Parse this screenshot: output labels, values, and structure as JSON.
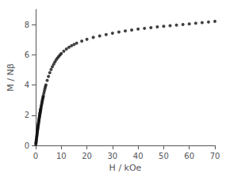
{
  "chart_data": {
    "type": "scatter",
    "title": "",
    "xlabel": "H / kOe",
    "ylabel": "M / Nβ",
    "xlim": [
      0,
      70
    ],
    "ylim": [
      0,
      9
    ],
    "xticks": [
      0,
      10,
      20,
      30,
      40,
      50,
      60,
      70
    ],
    "yticks": [
      0,
      2,
      4,
      6,
      8
    ],
    "color": "#111111",
    "grid": false,
    "x": [
      0.05,
      0.1,
      0.15,
      0.2,
      0.25,
      0.3,
      0.35,
      0.4,
      0.45,
      0.5,
      0.55,
      0.6,
      0.65,
      0.7,
      0.75,
      0.8,
      0.85,
      0.9,
      0.95,
      1.0,
      1.05,
      1.1,
      1.15,
      1.2,
      1.25,
      1.3,
      1.35,
      1.4,
      1.45,
      1.5,
      1.55,
      1.6,
      1.65,
      1.7,
      1.75,
      1.8,
      1.85,
      1.9,
      1.95,
      2.0,
      2.1,
      2.2,
      2.3,
      2.4,
      2.5,
      2.6,
      2.7,
      2.8,
      2.9,
      3.0,
      3.2,
      3.4,
      3.6,
      3.8,
      4.0,
      4.5,
      5.0,
      5.5,
      6.0,
      6.5,
      7.0,
      7.5,
      8.0,
      8.5,
      9.0,
      9.5,
      10.0,
      11.0,
      12.0,
      13.0,
      14.0,
      15.0,
      16.0,
      18.0,
      20.0,
      22.5,
      25.0,
      27.5,
      30.0,
      32.5,
      35.0,
      37.5,
      40.0,
      42.5,
      45.0,
      47.5,
      50.0,
      52.5,
      55.0,
      57.5,
      60.0,
      62.5,
      65.0,
      67.5,
      70.0
    ],
    "values": [
      0.07,
      0.14,
      0.21,
      0.28,
      0.35,
      0.42,
      0.49,
      0.56,
      0.63,
      0.7,
      0.77,
      0.84,
      0.91,
      0.98,
      1.04,
      1.1,
      1.17,
      1.23,
      1.29,
      1.35,
      1.41,
      1.47,
      1.53,
      1.59,
      1.65,
      1.71,
      1.77,
      1.83,
      1.88,
      1.93,
      1.99,
      2.04,
      2.09,
      2.14,
      2.19,
      2.24,
      2.29,
      2.34,
      2.38,
      2.43,
      2.52,
      2.61,
      2.7,
      2.79,
      2.88,
      2.97,
      3.06,
      3.14,
      3.22,
      3.3,
      3.46,
      3.61,
      3.75,
      3.88,
      4.0,
      4.3,
      4.57,
      4.81,
      5.02,
      5.21,
      5.37,
      5.52,
      5.66,
      5.78,
      5.89,
      5.99,
      6.08,
      6.24,
      6.38,
      6.5,
      6.6,
      6.69,
      6.77,
      6.91,
      7.03,
      7.15,
      7.25,
      7.34,
      7.43,
      7.51,
      7.58,
      7.64,
      7.7,
      7.75,
      7.8,
      7.85,
      7.89,
      7.93,
      7.97,
      8.01,
      8.05,
      8.09,
      8.13,
      8.17,
      8.21
    ]
  }
}
